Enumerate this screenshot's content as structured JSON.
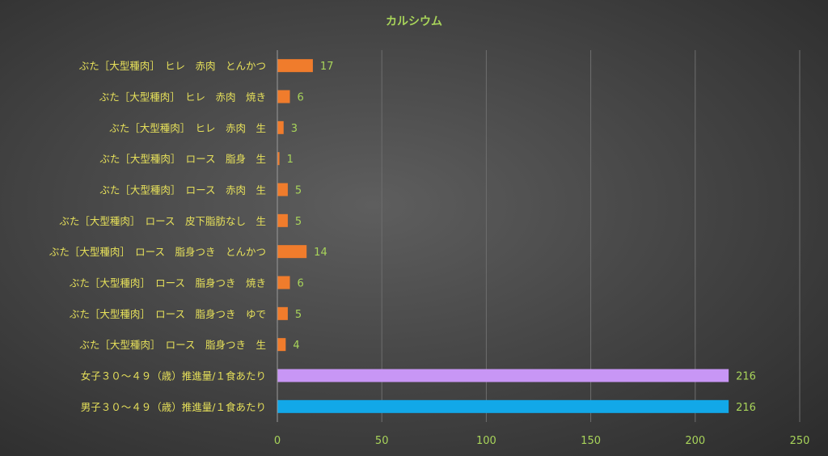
{
  "chart_data": {
    "type": "bar",
    "orientation": "horizontal",
    "title": "カルシウム",
    "xlabel": "",
    "ylabel": "",
    "xlim": [
      0,
      250
    ],
    "xticks": [
      0,
      50,
      100,
      150,
      200,
      250
    ],
    "grid": true,
    "data_labels": true,
    "categories": [
      "ぶた［大型種肉］　ヒレ　赤肉　とんかつ",
      "ぶた［大型種肉］　ヒレ　赤肉　焼き",
      "ぶた［大型種肉］　ヒレ　赤肉　生",
      "ぶた［大型種肉］　ロース　脂身　生",
      "ぶた［大型種肉］　ロース　赤肉　生",
      "ぶた［大型種肉］　ロース　皮下脂肪なし　生",
      "ぶた［大型種肉］　ロース　脂身つき　とんかつ",
      "ぶた［大型種肉］　ロース　脂身つき　焼き",
      "ぶた［大型種肉］　ロース　脂身つき　ゆで",
      "ぶた［大型種肉］　ロース　脂身つき　生",
      "女子３０～４９（歳）推進量/１食あたり",
      "男子３０～４９（歳）推進量/１食あたり"
    ],
    "values": [
      17,
      6,
      3,
      1,
      5,
      5,
      14,
      6,
      5,
      4,
      216,
      216
    ],
    "colors": [
      "#f07c2c",
      "#f07c2c",
      "#f07c2c",
      "#f07c2c",
      "#f07c2c",
      "#f07c2c",
      "#f07c2c",
      "#f07c2c",
      "#f07c2c",
      "#f07c2c",
      "#c896f5",
      "#12a8e8"
    ]
  },
  "theme": {
    "label_color": "#e6e05a",
    "tick_color": "#a8d45a",
    "value_color": "#a8d45a",
    "grid_color": "#6e6e6e"
  }
}
